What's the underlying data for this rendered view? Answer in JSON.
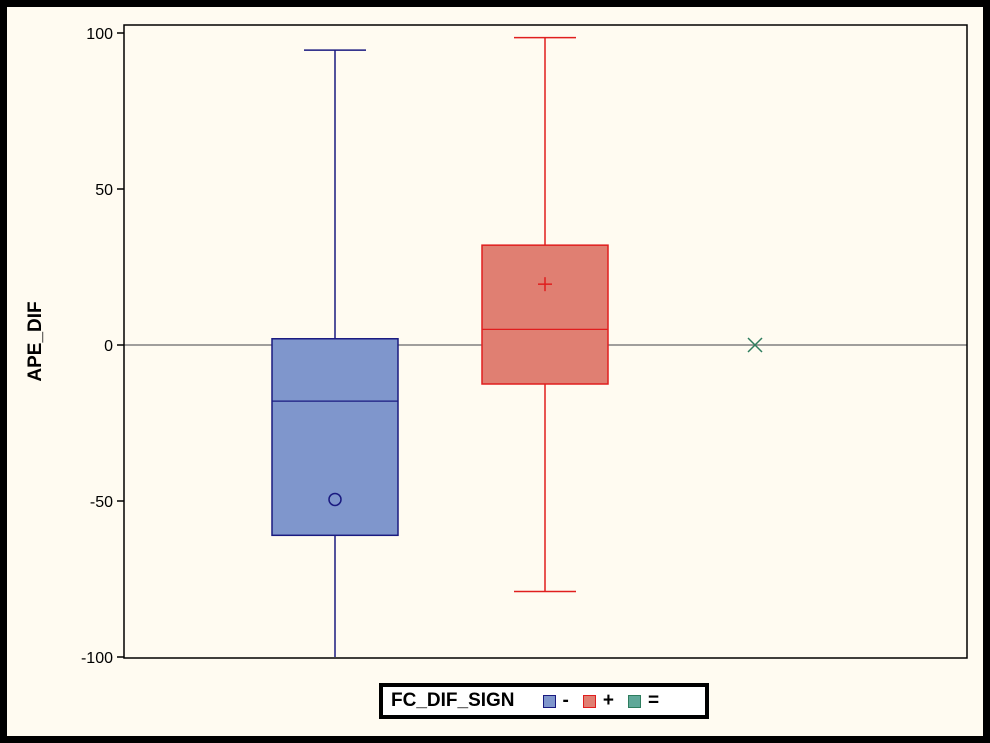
{
  "chart_data": {
    "type": "box",
    "title": "",
    "xlabel": "",
    "ylabel": "APE_DIF",
    "ylim": [
      -100,
      100
    ],
    "yticks": [
      -100,
      -50,
      0,
      50,
      100
    ],
    "reference_line_y": 0,
    "grid": false,
    "legend": {
      "title": "FC_DIF_SIGN",
      "placement": "bottom",
      "entries": [
        "-",
        "+",
        "="
      ]
    },
    "series": [
      {
        "name": "-",
        "fill_color": "#7f96cc",
        "line_color": "#1a1a80",
        "mean_marker": "circle",
        "whisker_min": -100,
        "q1": -61,
        "median": -18,
        "q3": 2,
        "whisker_max": 94.5,
        "mean": -49.5
      },
      {
        "name": "+",
        "fill_color": "#e07f72",
        "line_color": "#e01e1e",
        "mean_marker": "plus",
        "whisker_min": -79,
        "q1": -12.5,
        "median": 5,
        "q3": 32,
        "whisker_max": 98.5,
        "mean": 19.5
      },
      {
        "name": "=",
        "fill_color": "#5fa898",
        "line_color": "#2e7d5e",
        "mean_marker": "x",
        "whisker_min": 0,
        "q1": 0,
        "median": 0,
        "q3": 0,
        "whisker_max": 0,
        "mean": 0
      }
    ]
  }
}
